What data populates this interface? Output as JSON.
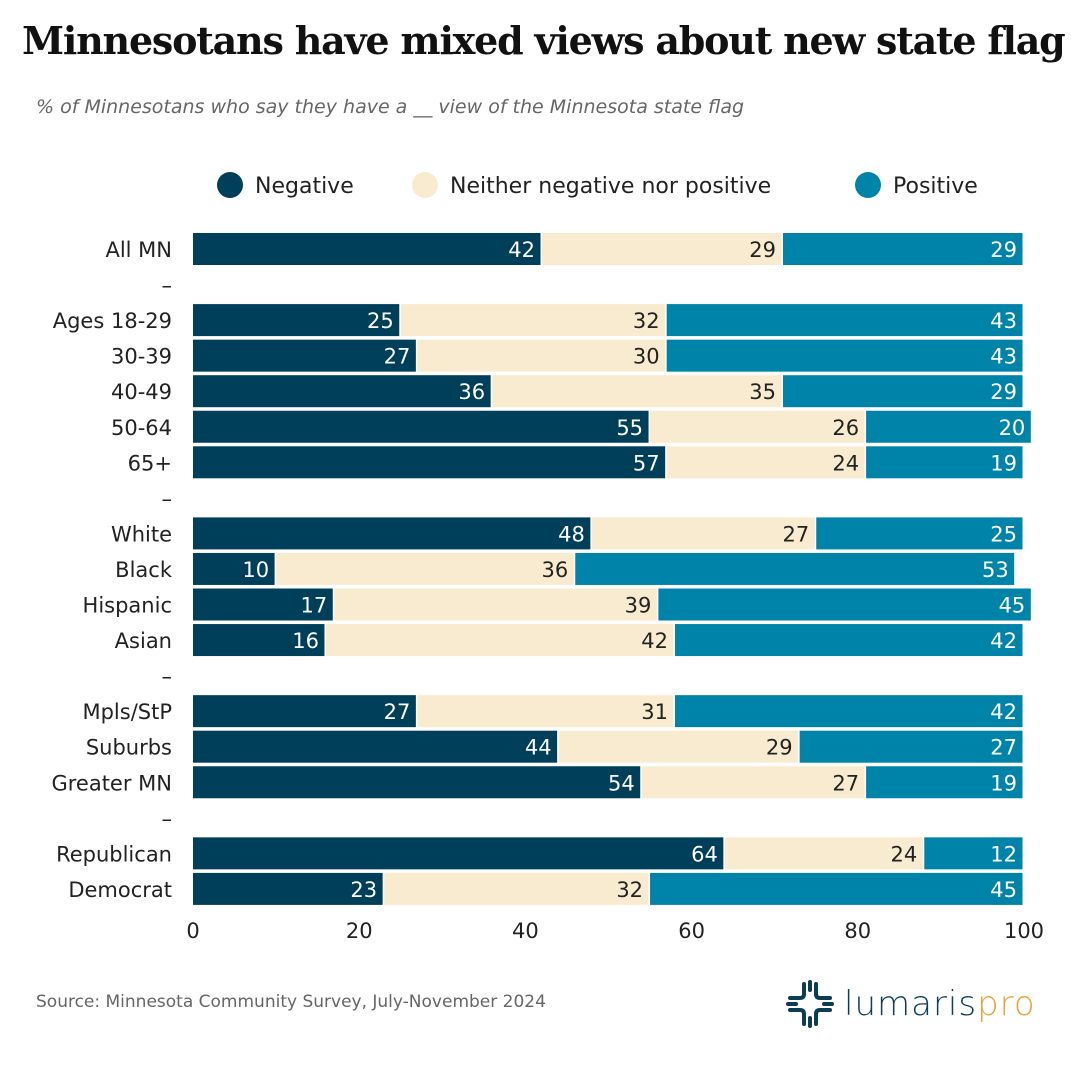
{
  "chart_data": {
    "type": "bar",
    "orientation": "horizontal",
    "stacked": true,
    "title": "Minnesotans have mixed views about new state flag",
    "subtitle": "% of Minnesotans who say they have a __ view of the Minnesota state flag",
    "categories": [
      "All MN",
      "–",
      "Ages 18-29",
      "30-39",
      "40-49",
      "50-64",
      "65+",
      "–",
      "White",
      "Black",
      "Hispanic",
      "Asian",
      "–",
      "Mpls/StP",
      "Suburbs",
      "Greater MN",
      "–",
      "Republican",
      "Democrat"
    ],
    "series": [
      {
        "name": "Negative",
        "color": "#003f5a",
        "values": [
          42,
          null,
          25,
          27,
          36,
          55,
          57,
          null,
          48,
          10,
          17,
          16,
          null,
          27,
          44,
          54,
          null,
          64,
          23
        ]
      },
      {
        "name": "Neither negative nor positive",
        "color": "#f9ebcf",
        "values": [
          29,
          null,
          32,
          30,
          35,
          26,
          24,
          null,
          27,
          36,
          39,
          42,
          null,
          31,
          29,
          27,
          null,
          24,
          32
        ]
      },
      {
        "name": "Positive",
        "color": "#0083a8",
        "values": [
          29,
          null,
          43,
          43,
          29,
          20,
          19,
          null,
          25,
          53,
          45,
          42,
          null,
          42,
          27,
          19,
          null,
          12,
          45
        ]
      }
    ],
    "xlim": [
      0,
      100
    ],
    "xticks": [
      0,
      20,
      40,
      60,
      80,
      100
    ],
    "legend_position": "top",
    "grid": false
  },
  "source": "Source: Minnesota Community Survey, July-November 2024",
  "logo": {
    "text_main": "lumaris",
    "text_accent": "pro"
  }
}
